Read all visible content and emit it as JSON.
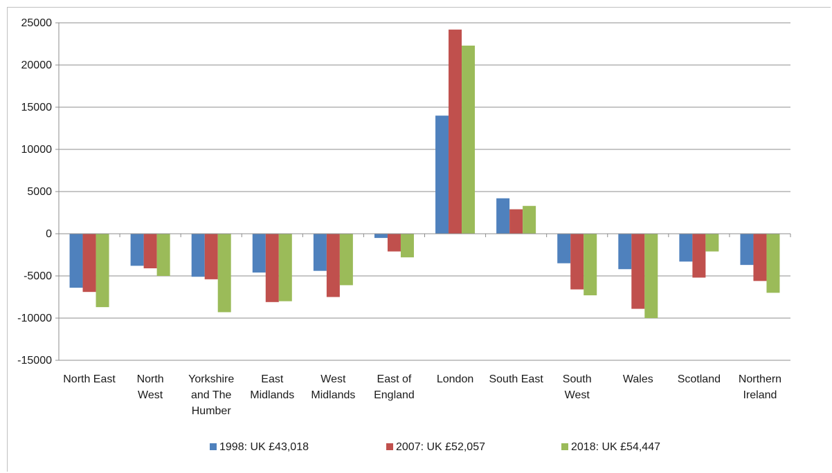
{
  "chart_data": {
    "type": "bar",
    "categories": [
      [
        "North East"
      ],
      [
        "North",
        "West"
      ],
      [
        "Yorkshire",
        "and The",
        "Humber"
      ],
      [
        "East",
        "Midlands"
      ],
      [
        "West",
        "Midlands"
      ],
      [
        "East of",
        "England"
      ],
      [
        "London"
      ],
      [
        "South East"
      ],
      [
        "South",
        "West"
      ],
      [
        "Wales"
      ],
      [
        "Scotland"
      ],
      [
        "Northern",
        "Ireland"
      ]
    ],
    "series": [
      {
        "name": "1998: UK £43,018",
        "color": "#4f81bd",
        "values": [
          -6400,
          -3800,
          -5100,
          -4600,
          -4400,
          -500,
          14000,
          4200,
          -3500,
          -4200,
          -3300,
          -3700
        ]
      },
      {
        "name": "2007: UK £52,057",
        "color": "#c0504d",
        "values": [
          -6900,
          -4100,
          -5400,
          -8100,
          -7500,
          -2100,
          24200,
          2900,
          -6600,
          -8900,
          -5200,
          -5600
        ]
      },
      {
        "name": "2018: UK £54,447",
        "color": "#9bbb59",
        "values": [
          -8700,
          -5000,
          -9300,
          -8000,
          -6100,
          -2800,
          22300,
          3300,
          -7300,
          -10000,
          -2100,
          -7000
        ]
      }
    ],
    "ylim": [
      -15000,
      25000
    ],
    "yticks": [
      25000,
      20000,
      15000,
      10000,
      5000,
      0,
      -5000,
      -10000,
      -15000
    ],
    "ytick_labels": [
      "25000",
      "20000",
      "15000",
      "10000",
      "5000",
      "0",
      "-5000",
      "-10000",
      "-15000"
    ],
    "grid": true,
    "legend_position": "bottom"
  }
}
